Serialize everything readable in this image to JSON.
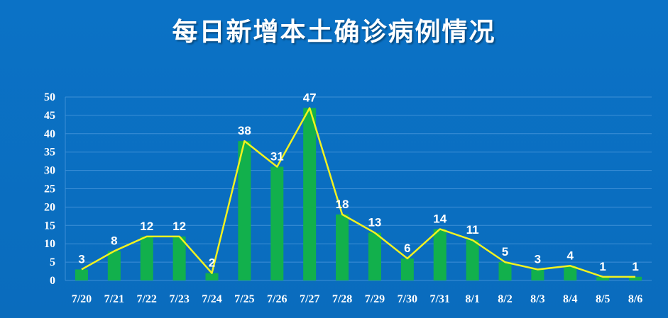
{
  "title": "每日新增本土确诊病例情况",
  "colors": {
    "background": "#0b70c4",
    "bar": "#12b04c",
    "line": "#f2f21f",
    "grid": "#3d8fd6",
    "text": "#ffffff"
  },
  "chart_data": {
    "type": "bar",
    "title": "每日新增本土确诊病例情况",
    "xlabel": "",
    "ylabel": "",
    "categories": [
      "7/20",
      "7/21",
      "7/22",
      "7/23",
      "7/24",
      "7/25",
      "7/26",
      "7/27",
      "7/28",
      "7/29",
      "7/30",
      "7/31",
      "8/1",
      "8/2",
      "8/3",
      "8/4",
      "8/5",
      "8/6"
    ],
    "values": [
      3,
      8,
      12,
      12,
      2,
      38,
      31,
      47,
      18,
      13,
      6,
      14,
      11,
      5,
      3,
      4,
      1,
      1
    ],
    "overlay_line": true,
    "data_labels": true,
    "ylim": [
      0,
      50
    ],
    "yticks": [
      0,
      5,
      10,
      15,
      20,
      25,
      30,
      35,
      40,
      45,
      50
    ],
    "grid": true,
    "legend": "none"
  }
}
